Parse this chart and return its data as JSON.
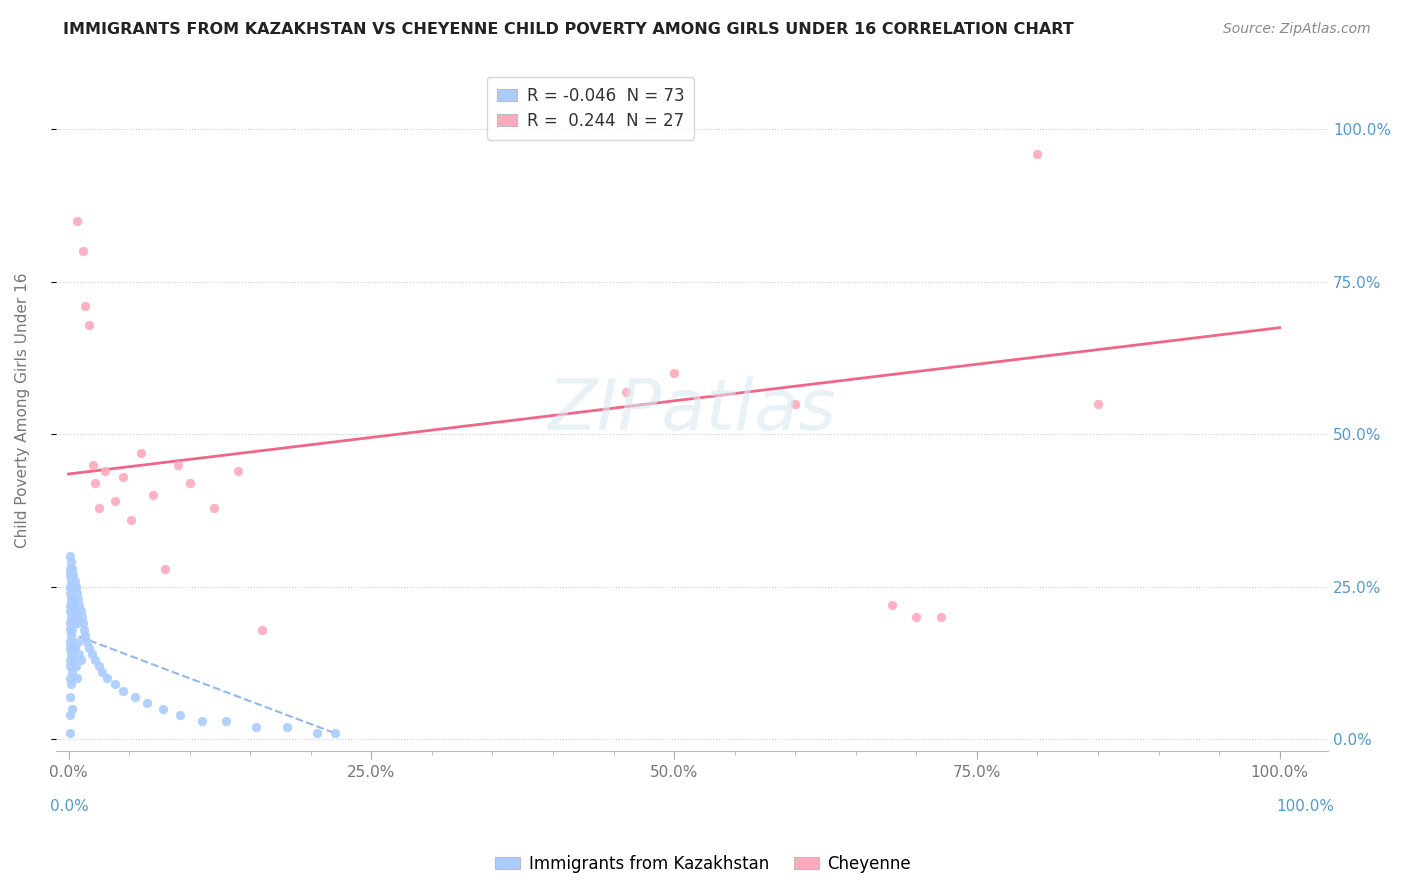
{
  "title": "IMMIGRANTS FROM KAZAKHSTAN VS CHEYENNE CHILD POVERTY AMONG GIRLS UNDER 16 CORRELATION CHART",
  "source": "Source: ZipAtlas.com",
  "ylabel": "Child Poverty Among Girls Under 16",
  "legend_blue": "R = -0.046  N = 73",
  "legend_pink": "R =  0.244  N = 27",
  "watermark_text": "ZIPatlas",
  "blue_color": "#aaccff",
  "pink_color": "#ffaabc",
  "blue_line_color": "#6699dd",
  "pink_line_color": "#ee6688",
  "background_color": "#ffffff",
  "grid_color": "#dddddd",
  "right_axis_color": "#5599cc",
  "bottom_label_blue": "Immigrants from Kazakhstan",
  "bottom_label_pink": "Cheyenne",
  "pink_line_x0": 0.0,
  "pink_line_y0": 0.435,
  "pink_line_x1": 1.0,
  "pink_line_y1": 0.675,
  "blue_line_x0": 0.0,
  "blue_line_y0": 0.175,
  "blue_line_x1": 0.22,
  "blue_line_y1": 0.01,
  "xlim_min": -0.01,
  "xlim_max": 1.04,
  "ylim_min": -0.02,
  "ylim_max": 1.1,
  "blue_pts_x": [
    0.001,
    0.001,
    0.001,
    0.001,
    0.001,
    0.001,
    0.001,
    0.001,
    0.001,
    0.001,
    0.001,
    0.001,
    0.001,
    0.001,
    0.001,
    0.001,
    0.001,
    0.002,
    0.002,
    0.002,
    0.002,
    0.002,
    0.002,
    0.002,
    0.003,
    0.003,
    0.003,
    0.003,
    0.003,
    0.003,
    0.003,
    0.004,
    0.004,
    0.004,
    0.004,
    0.005,
    0.005,
    0.005,
    0.006,
    0.006,
    0.006,
    0.007,
    0.007,
    0.007,
    0.008,
    0.008,
    0.009,
    0.009,
    0.01,
    0.01,
    0.011,
    0.012,
    0.013,
    0.014,
    0.015,
    0.017,
    0.019,
    0.022,
    0.025,
    0.028,
    0.032,
    0.038,
    0.045,
    0.055,
    0.065,
    0.078,
    0.092,
    0.11,
    0.13,
    0.155,
    0.18,
    0.205,
    0.22
  ],
  "blue_pts_y": [
    0.28,
    0.25,
    0.22,
    0.19,
    0.16,
    0.13,
    0.1,
    0.07,
    0.04,
    0.01,
    0.3,
    0.27,
    0.24,
    0.21,
    0.18,
    0.15,
    0.12,
    0.29,
    0.26,
    0.23,
    0.2,
    0.17,
    0.14,
    0.09,
    0.28,
    0.25,
    0.22,
    0.18,
    0.15,
    0.11,
    0.05,
    0.27,
    0.23,
    0.19,
    0.13,
    0.26,
    0.21,
    0.15,
    0.25,
    0.2,
    0.12,
    0.24,
    0.19,
    0.1,
    0.23,
    0.16,
    0.22,
    0.14,
    0.21,
    0.13,
    0.2,
    0.19,
    0.18,
    0.17,
    0.16,
    0.15,
    0.14,
    0.13,
    0.12,
    0.11,
    0.1,
    0.09,
    0.08,
    0.07,
    0.06,
    0.05,
    0.04,
    0.03,
    0.03,
    0.02,
    0.02,
    0.01,
    0.01
  ],
  "pink_pts_x": [
    0.007,
    0.012,
    0.014,
    0.017,
    0.02,
    0.022,
    0.025,
    0.03,
    0.038,
    0.045,
    0.052,
    0.06,
    0.07,
    0.08,
    0.09,
    0.1,
    0.12,
    0.14,
    0.16,
    0.46,
    0.5,
    0.6,
    0.7,
    0.8,
    0.85,
    0.68,
    0.72
  ],
  "pink_pts_y": [
    0.85,
    0.8,
    0.71,
    0.68,
    0.45,
    0.42,
    0.38,
    0.44,
    0.39,
    0.43,
    0.36,
    0.47,
    0.4,
    0.28,
    0.45,
    0.42,
    0.38,
    0.44,
    0.18,
    0.57,
    0.6,
    0.55,
    0.2,
    0.96,
    0.55,
    0.22,
    0.2
  ]
}
